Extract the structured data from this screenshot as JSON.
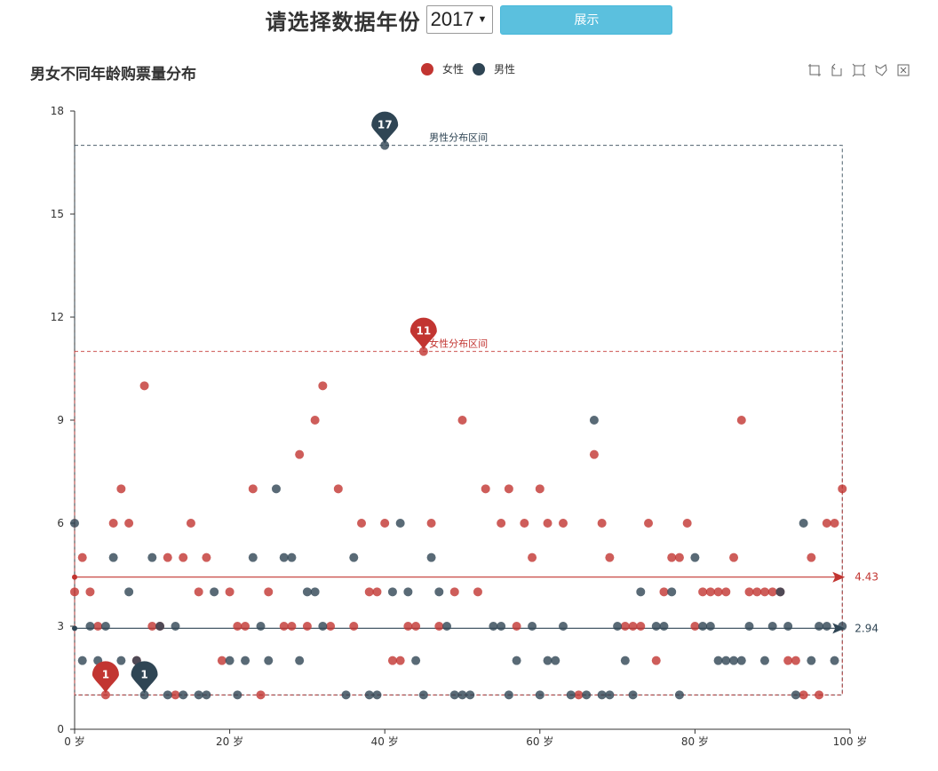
{
  "header": {
    "title": "请选择数据年份",
    "year_value": "2017",
    "show_label": "展示"
  },
  "chart_title": "男女不同年龄购票量分布",
  "legend": [
    {
      "name": "女性",
      "color": "#c23531"
    },
    {
      "name": "男性",
      "color": "#2f4554"
    }
  ],
  "toolbox_icons": [
    "zoom-icon",
    "zoom-reset-icon",
    "rect-select-icon",
    "lasso-select-icon",
    "clear-select-icon"
  ],
  "chart_data": {
    "type": "scatter",
    "xlim": [
      0,
      100
    ],
    "ylim": [
      0,
      18
    ],
    "x_ticks": [
      0,
      20,
      40,
      60,
      80,
      100
    ],
    "x_tick_labels": [
      "0 岁",
      "20 岁",
      "40 岁",
      "60 岁",
      "80 岁",
      "100 岁"
    ],
    "y_ticks": [
      0,
      3,
      6,
      9,
      12,
      15,
      18
    ],
    "y_tick_labels": [
      "0",
      "3",
      "6",
      "9",
      "12",
      "15",
      "18"
    ],
    "female_color": "#c23531",
    "male_color": "#2f4554",
    "series": [
      {
        "name": "女性",
        "color": "#c23531",
        "points": [
          [
            0,
            4
          ],
          [
            1,
            5
          ],
          [
            2,
            4
          ],
          [
            3,
            3
          ],
          [
            4,
            1
          ],
          [
            5,
            6
          ],
          [
            6,
            7
          ],
          [
            7,
            6
          ],
          [
            8,
            2
          ],
          [
            9,
            10
          ],
          [
            10,
            3
          ],
          [
            11,
            3
          ],
          [
            12,
            5
          ],
          [
            13,
            1
          ],
          [
            14,
            5
          ],
          [
            15,
            6
          ],
          [
            16,
            4
          ],
          [
            17,
            5
          ],
          [
            19,
            2
          ],
          [
            20,
            4
          ],
          [
            21,
            3
          ],
          [
            22,
            3
          ],
          [
            23,
            7
          ],
          [
            24,
            1
          ],
          [
            25,
            4
          ],
          [
            27,
            3
          ],
          [
            28,
            3
          ],
          [
            29,
            8
          ],
          [
            30,
            3
          ],
          [
            31,
            9
          ],
          [
            32,
            10
          ],
          [
            33,
            3
          ],
          [
            34,
            7
          ],
          [
            36,
            3
          ],
          [
            37,
            6
          ],
          [
            38,
            4
          ],
          [
            39,
            4
          ],
          [
            40,
            6
          ],
          [
            41,
            2
          ],
          [
            42,
            2
          ],
          [
            43,
            3
          ],
          [
            44,
            3
          ],
          [
            45,
            11
          ],
          [
            46,
            6
          ],
          [
            47,
            3
          ],
          [
            49,
            4
          ],
          [
            50,
            9
          ],
          [
            52,
            4
          ],
          [
            53,
            7
          ],
          [
            55,
            6
          ],
          [
            56,
            7
          ],
          [
            57,
            3
          ],
          [
            58,
            6
          ],
          [
            59,
            5
          ],
          [
            60,
            7
          ],
          [
            61,
            6
          ],
          [
            63,
            6
          ],
          [
            65,
            1
          ],
          [
            67,
            8
          ],
          [
            68,
            6
          ],
          [
            69,
            5
          ],
          [
            71,
            3
          ],
          [
            72,
            3
          ],
          [
            73,
            3
          ],
          [
            74,
            6
          ],
          [
            75,
            2
          ],
          [
            76,
            4
          ],
          [
            77,
            5
          ],
          [
            78,
            5
          ],
          [
            79,
            6
          ],
          [
            80,
            3
          ],
          [
            81,
            4
          ],
          [
            82,
            4
          ],
          [
            83,
            4
          ],
          [
            84,
            4
          ],
          [
            85,
            5
          ],
          [
            86,
            9
          ],
          [
            87,
            4
          ],
          [
            88,
            4
          ],
          [
            89,
            4
          ],
          [
            90,
            4
          ],
          [
            91,
            4
          ],
          [
            92,
            2
          ],
          [
            93,
            2
          ],
          [
            94,
            1
          ],
          [
            95,
            5
          ],
          [
            96,
            1
          ],
          [
            97,
            6
          ],
          [
            98,
            6
          ],
          [
            99,
            7
          ]
        ],
        "max_marker": {
          "x": 45,
          "y": 11,
          "label": "11"
        },
        "min_marker": {
          "x": 4,
          "y": 1,
          "label": "1"
        },
        "average": 4.43,
        "average_label": "4.43",
        "range_label": "女性分布区间",
        "range": {
          "x0": 0,
          "x1": 99,
          "y0": 1,
          "y1": 11
        }
      },
      {
        "name": "男性",
        "color": "#2f4554",
        "points": [
          [
            0,
            6
          ],
          [
            1,
            2
          ],
          [
            2,
            3
          ],
          [
            3,
            2
          ],
          [
            4,
            3
          ],
          [
            5,
            5
          ],
          [
            6,
            2
          ],
          [
            7,
            4
          ],
          [
            8,
            2
          ],
          [
            9,
            1
          ],
          [
            10,
            5
          ],
          [
            11,
            3
          ],
          [
            12,
            1
          ],
          [
            13,
            3
          ],
          [
            14,
            1
          ],
          [
            16,
            1
          ],
          [
            17,
            1
          ],
          [
            18,
            4
          ],
          [
            20,
            2
          ],
          [
            21,
            1
          ],
          [
            22,
            2
          ],
          [
            23,
            5
          ],
          [
            24,
            3
          ],
          [
            25,
            2
          ],
          [
            26,
            7
          ],
          [
            27,
            5
          ],
          [
            28,
            5
          ],
          [
            29,
            2
          ],
          [
            30,
            4
          ],
          [
            31,
            4
          ],
          [
            32,
            3
          ],
          [
            35,
            1
          ],
          [
            36,
            5
          ],
          [
            38,
            1
          ],
          [
            39,
            1
          ],
          [
            40,
            17
          ],
          [
            41,
            4
          ],
          [
            42,
            6
          ],
          [
            43,
            4
          ],
          [
            44,
            2
          ],
          [
            45,
            1
          ],
          [
            46,
            5
          ],
          [
            47,
            4
          ],
          [
            48,
            3
          ],
          [
            49,
            1
          ],
          [
            50,
            1
          ],
          [
            51,
            1
          ],
          [
            54,
            3
          ],
          [
            55,
            3
          ],
          [
            56,
            1
          ],
          [
            57,
            2
          ],
          [
            59,
            3
          ],
          [
            60,
            1
          ],
          [
            61,
            2
          ],
          [
            62,
            2
          ],
          [
            63,
            3
          ],
          [
            64,
            1
          ],
          [
            66,
            1
          ],
          [
            67,
            9
          ],
          [
            68,
            1
          ],
          [
            69,
            1
          ],
          [
            70,
            3
          ],
          [
            71,
            2
          ],
          [
            72,
            1
          ],
          [
            73,
            4
          ],
          [
            75,
            3
          ],
          [
            76,
            3
          ],
          [
            77,
            4
          ],
          [
            78,
            1
          ],
          [
            80,
            5
          ],
          [
            81,
            3
          ],
          [
            82,
            3
          ],
          [
            83,
            2
          ],
          [
            84,
            2
          ],
          [
            85,
            2
          ],
          [
            86,
            2
          ],
          [
            87,
            3
          ],
          [
            89,
            2
          ],
          [
            90,
            3
          ],
          [
            91,
            4
          ],
          [
            92,
            3
          ],
          [
            93,
            1
          ],
          [
            94,
            6
          ],
          [
            95,
            2
          ],
          [
            96,
            3
          ],
          [
            97,
            3
          ],
          [
            98,
            2
          ],
          [
            99,
            3
          ]
        ],
        "max_marker": {
          "x": 40,
          "y": 17,
          "label": "17"
        },
        "min_marker": {
          "x": 9,
          "y": 1,
          "label": "1"
        },
        "average": 2.94,
        "average_label": "2.94",
        "range_label": "男性分布区间",
        "range": {
          "x0": 0,
          "x1": 99,
          "y0": 1,
          "y1": 17
        }
      }
    ]
  }
}
